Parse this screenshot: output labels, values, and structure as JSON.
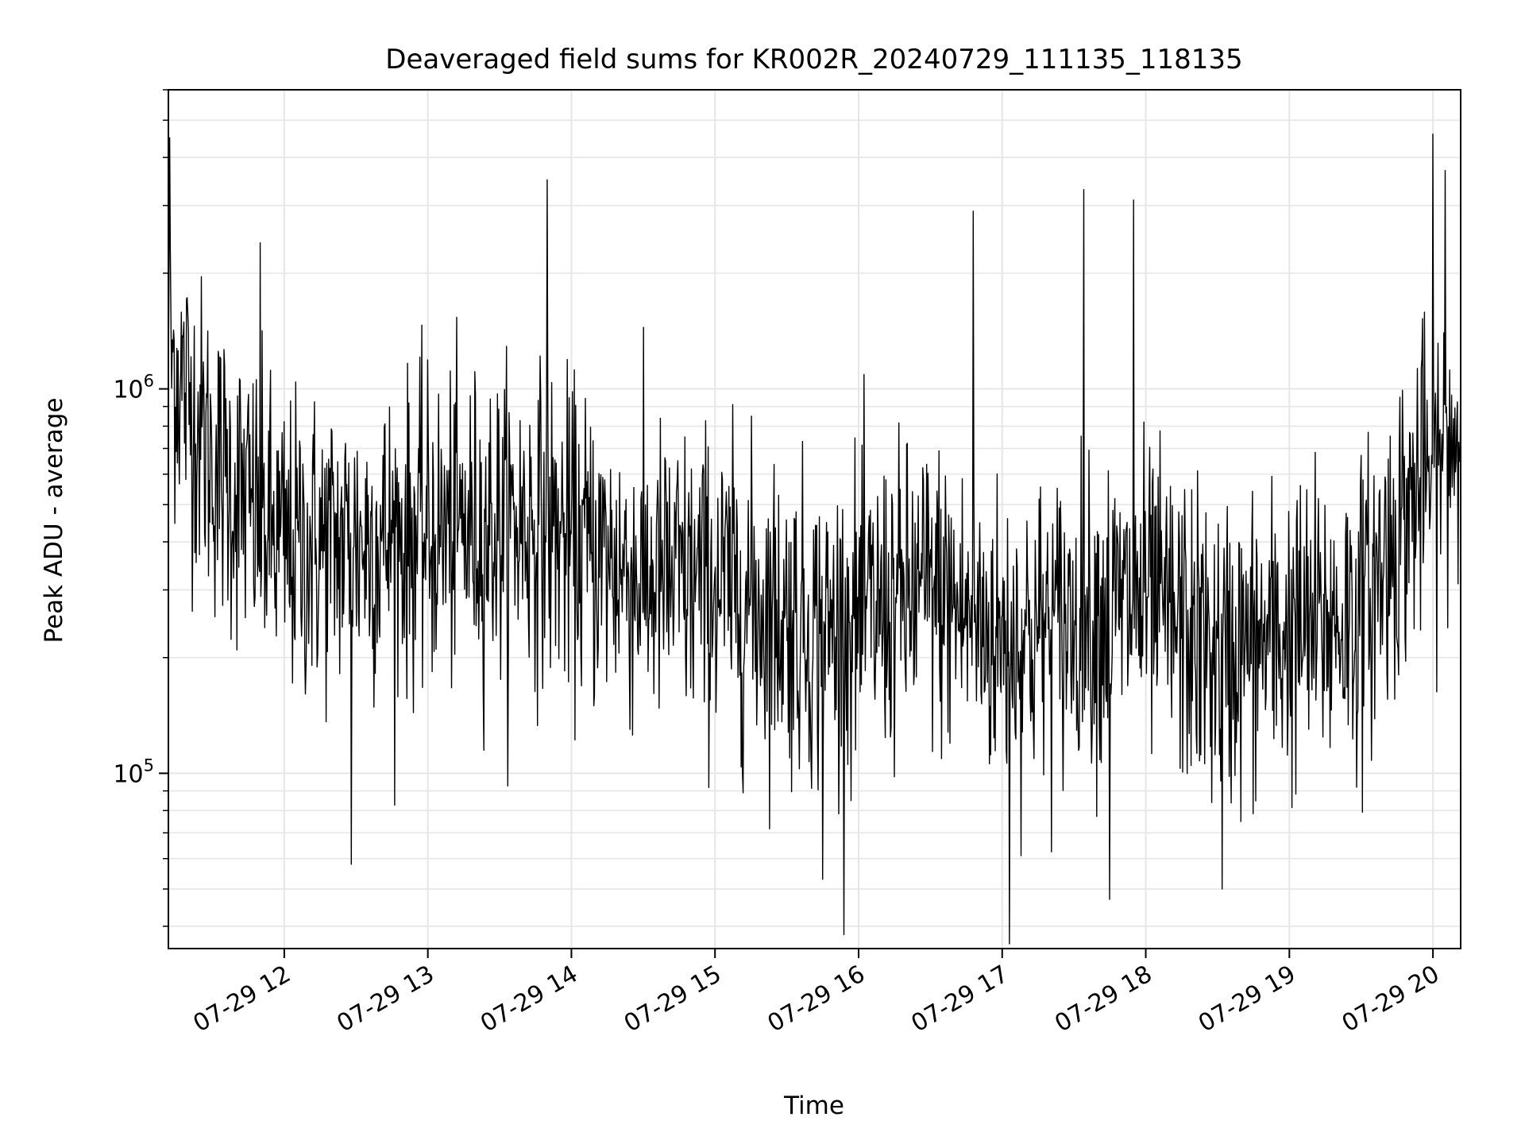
{
  "chart_data": {
    "type": "line",
    "title": "Deaveraged field sums for KR002R_20240729_111135_118135",
    "xlabel": "Time",
    "ylabel": "Peak ADU - average",
    "yscale": "log",
    "ylim": [
      35000,
      6000000
    ],
    "x_start": "2024-07-29 11:11:35",
    "x_end": "2024-07-29 20:11:35",
    "xticks": [
      {
        "t": "2024-07-29 12:00",
        "label": "07-29 12"
      },
      {
        "t": "2024-07-29 13:00",
        "label": "07-29 13"
      },
      {
        "t": "2024-07-29 14:00",
        "label": "07-29 14"
      },
      {
        "t": "2024-07-29 15:00",
        "label": "07-29 15"
      },
      {
        "t": "2024-07-29 16:00",
        "label": "07-29 16"
      },
      {
        "t": "2024-07-29 17:00",
        "label": "07-29 17"
      },
      {
        "t": "2024-07-29 18:00",
        "label": "07-29 18"
      },
      {
        "t": "2024-07-29 19:00",
        "label": "07-29 19"
      },
      {
        "t": "2024-07-29 20:00",
        "label": "07-29 20"
      }
    ],
    "yticks": [
      {
        "value": 100000,
        "base": "10",
        "exp": "5"
      },
      {
        "value": 1000000,
        "base": "10",
        "exp": "6"
      }
    ],
    "grid": true,
    "legend": "none",
    "series": [
      {
        "color": "#000000",
        "profile": [
          {
            "t": "2024-07-29 11:11",
            "y": 1300000
          },
          {
            "t": "2024-07-29 11:30",
            "y": 650000
          },
          {
            "t": "2024-07-29 12:00",
            "y": 380000
          },
          {
            "t": "2024-07-29 13:00",
            "y": 420000
          },
          {
            "t": "2024-07-29 13:45",
            "y": 450000
          },
          {
            "t": "2024-07-29 14:30",
            "y": 320000
          },
          {
            "t": "2024-07-29 15:00",
            "y": 310000
          },
          {
            "t": "2024-07-29 15:45",
            "y": 230000
          },
          {
            "t": "2024-07-29 16:30",
            "y": 300000
          },
          {
            "t": "2024-07-29 17:00",
            "y": 220000
          },
          {
            "t": "2024-07-29 18:00",
            "y": 280000
          },
          {
            "t": "2024-07-29 18:30",
            "y": 200000
          },
          {
            "t": "2024-07-29 19:30",
            "y": 260000
          },
          {
            "t": "2024-07-29 19:50",
            "y": 500000
          },
          {
            "t": "2024-07-29 20:11",
            "y": 800000
          }
        ],
        "peaks": [
          {
            "t": "2024-07-29 11:12",
            "y": 4500000
          },
          {
            "t": "2024-07-29 11:50",
            "y": 2400000
          },
          {
            "t": "2024-07-29 13:50",
            "y": 3500000
          },
          {
            "t": "2024-07-29 16:48",
            "y": 2900000
          },
          {
            "t": "2024-07-29 17:34",
            "y": 3300000
          },
          {
            "t": "2024-07-29 17:55",
            "y": 3100000
          },
          {
            "t": "2024-07-29 20:00",
            "y": 4600000
          },
          {
            "t": "2024-07-29 20:05",
            "y": 3700000
          }
        ],
        "troughs": [
          {
            "t": "2024-07-29 12:28",
            "y": 58000
          },
          {
            "t": "2024-07-29 15:45",
            "y": 53000
          },
          {
            "t": "2024-07-29 17:03",
            "y": 36000
          },
          {
            "t": "2024-07-29 17:45",
            "y": 47000
          },
          {
            "t": "2024-07-29 18:32",
            "y": 50000
          }
        ],
        "points": 2000
      }
    ]
  }
}
